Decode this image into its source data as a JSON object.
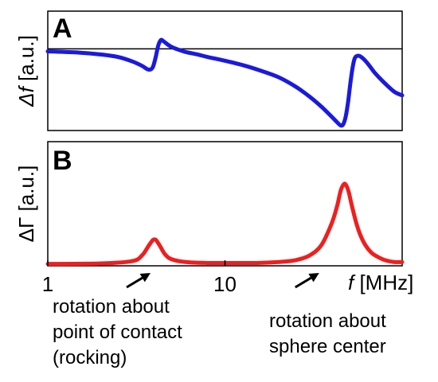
{
  "chart_data": [
    {
      "type": "line",
      "panel_label": "A",
      "ylabel_symbol": "Δf",
      "ylabel_unit": " [a.u.]",
      "xscale": "log",
      "xlim": [
        1,
        100
      ],
      "ylim": [
        -1.3,
        0.6
      ],
      "baseline": 0,
      "series": [
        {
          "color": "#1a1adf",
          "x": [
            1,
            1.5,
            2,
            2.5,
            3,
            3.4,
            3.7,
            3.9,
            4.05,
            4.2,
            4.35,
            4.5,
            4.65,
            4.8,
            5.0,
            5.3,
            6,
            7,
            8,
            10,
            13,
            16,
            20,
            25,
            30,
            35,
            40,
            43,
            45,
            46.5,
            48,
            49.5,
            51,
            52.5,
            54,
            56,
            58,
            61,
            65,
            70,
            78,
            90,
            100
          ],
          "y": [
            -0.04,
            -0.06,
            -0.09,
            -0.13,
            -0.2,
            -0.27,
            -0.33,
            -0.3,
            -0.15,
            0.05,
            0.14,
            0.12,
            0.09,
            0.06,
            0.03,
            0.0,
            -0.05,
            -0.09,
            -0.13,
            -0.19,
            -0.27,
            -0.35,
            -0.45,
            -0.6,
            -0.76,
            -0.92,
            -1.08,
            -1.17,
            -1.22,
            -1.2,
            -1.08,
            -0.85,
            -0.55,
            -0.3,
            -0.15,
            -0.11,
            -0.12,
            -0.17,
            -0.26,
            -0.38,
            -0.52,
            -0.68,
            -0.74
          ]
        }
      ]
    },
    {
      "type": "line",
      "panel_label": "B",
      "ylabel_symbol": "ΔΓ",
      "ylabel_unit": " [a.u.]",
      "xscale": "log",
      "xlim": [
        1,
        100
      ],
      "ylim": [
        -0.02,
        1.3
      ],
      "xticks": [
        1,
        10
      ],
      "xtick_labels": [
        "1",
        "10"
      ],
      "xlabel_symbol": "f",
      "xlabel_unit": " [MHz]",
      "series": [
        {
          "color": "#ef1f1f",
          "x": [
            1,
            2,
            3,
            3.4,
            3.7,
            3.9,
            4.0,
            4.1,
            4.3,
            4.6,
            5.0,
            6,
            8,
            10,
            15,
            20,
            25,
            30,
            35,
            40,
            43,
            45,
            47,
            48.5,
            50,
            52,
            55,
            58,
            62,
            67,
            72,
            80,
            90,
            100
          ],
          "y": [
            0.0,
            0.005,
            0.03,
            0.09,
            0.19,
            0.25,
            0.26,
            0.25,
            0.19,
            0.1,
            0.05,
            0.02,
            0.01,
            0.01,
            0.01,
            0.02,
            0.04,
            0.09,
            0.2,
            0.43,
            0.62,
            0.78,
            0.85,
            0.83,
            0.76,
            0.62,
            0.44,
            0.31,
            0.2,
            0.12,
            0.08,
            0.04,
            0.02,
            0.02
          ]
        }
      ],
      "annotations": [
        {
          "lines": [
            "rotation about",
            "point of contact",
            "(rocking)"
          ],
          "target_x": 3.8
        },
        {
          "lines": [
            "rotation about",
            "sphere center"
          ],
          "target_x": 34
        }
      ]
    }
  ]
}
